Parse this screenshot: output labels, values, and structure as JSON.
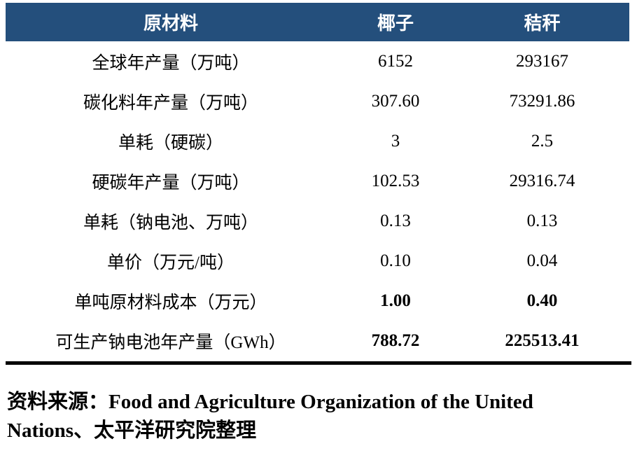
{
  "table": {
    "header": {
      "material": "原材料",
      "coconut": "椰子",
      "straw": "秸秆"
    },
    "rows": [
      {
        "label": "全球年产量（万吨）",
        "coconut": "6152",
        "straw": "293167",
        "bold": false
      },
      {
        "label": "碳化料年产量（万吨）",
        "coconut": "307.60",
        "straw": "73291.86",
        "bold": false
      },
      {
        "label": "单耗（硬碳）",
        "coconut": "3",
        "straw": "2.5",
        "bold": false
      },
      {
        "label": "硬碳年产量（万吨）",
        "coconut": "102.53",
        "straw": "29316.74",
        "bold": false
      },
      {
        "label": "单耗（钠电池、万吨）",
        "coconut": "0.13",
        "straw": "0.13",
        "bold": false
      },
      {
        "label": "单价（万元/吨）",
        "coconut": "0.10",
        "straw": "0.04",
        "bold": false
      },
      {
        "label": "单吨原材料成本（万元）",
        "coconut": "1.00",
        "straw": "0.40",
        "bold": true
      },
      {
        "label": "可生产钠电池年产量（GWh）",
        "coconut": "788.72",
        "straw": "225513.41",
        "bold": true
      }
    ]
  },
  "source": {
    "line1": "资料来源：Food and Agriculture Organization of the United",
    "line2": "Nations、太平洋研究院整理"
  },
  "colors": {
    "header_bg": "#244F7C",
    "header_text": "#FFFFFF",
    "body_text": "#000000",
    "rule": "#000000"
  }
}
